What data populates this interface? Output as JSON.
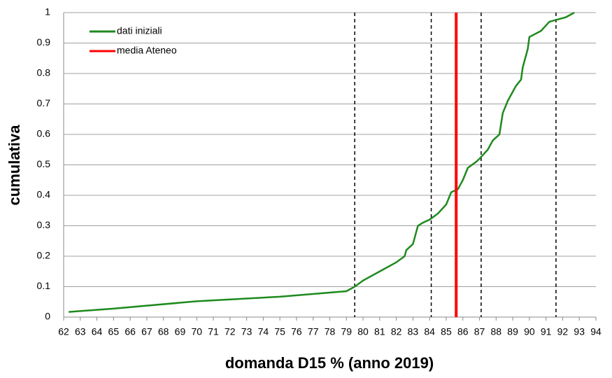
{
  "chart_data": {
    "type": "line",
    "xlabel": "domanda D15 % (anno 2019)",
    "ylabel": "cumulativa",
    "xlim": [
      62,
      94
    ],
    "xticks": [
      62,
      63,
      64,
      65,
      66,
      67,
      68,
      69,
      70,
      71,
      72,
      73,
      74,
      75,
      76,
      77,
      78,
      79,
      80,
      81,
      82,
      83,
      84,
      85,
      86,
      87,
      88,
      89,
      90,
      91,
      92,
      93,
      94
    ],
    "ylim": [
      0,
      1
    ],
    "yticks": [
      0,
      0.1,
      0.2,
      0.3,
      0.4,
      0.5,
      0.6,
      0.7,
      0.8,
      0.9,
      1
    ],
    "grid": true,
    "legend": "upper left",
    "vlines": [
      79.5,
      84.1,
      87.1,
      91.6
    ],
    "vline_color": "#000000",
    "series": [
      {
        "name": "dati iniziali",
        "color": "#1e8a1e",
        "x": [
          62.3,
          65,
          70,
          75,
          79,
          79.5,
          80,
          81,
          82,
          82.5,
          82.6,
          83,
          83.3,
          83.6,
          84,
          84.5,
          85,
          85.3,
          85.7,
          86,
          86.3,
          86.8,
          87,
          87.5,
          87.8,
          88.2,
          88.4,
          88.7,
          89.2,
          89.5,
          89.6,
          89.9,
          90,
          90.7,
          91.2,
          92.2,
          92.7
        ],
        "values": [
          0.017,
          0.028,
          0.052,
          0.067,
          0.085,
          0.1,
          0.12,
          0.15,
          0.18,
          0.2,
          0.22,
          0.24,
          0.3,
          0.31,
          0.32,
          0.34,
          0.37,
          0.41,
          0.42,
          0.45,
          0.49,
          0.51,
          0.52,
          0.55,
          0.58,
          0.6,
          0.67,
          0.71,
          0.76,
          0.78,
          0.82,
          0.88,
          0.92,
          0.94,
          0.97,
          0.985,
          1.0
        ]
      },
      {
        "name": "media Ateneo",
        "color": "#ff0000",
        "x": [
          85.6,
          85.6
        ],
        "values": [
          0,
          1
        ]
      }
    ]
  }
}
